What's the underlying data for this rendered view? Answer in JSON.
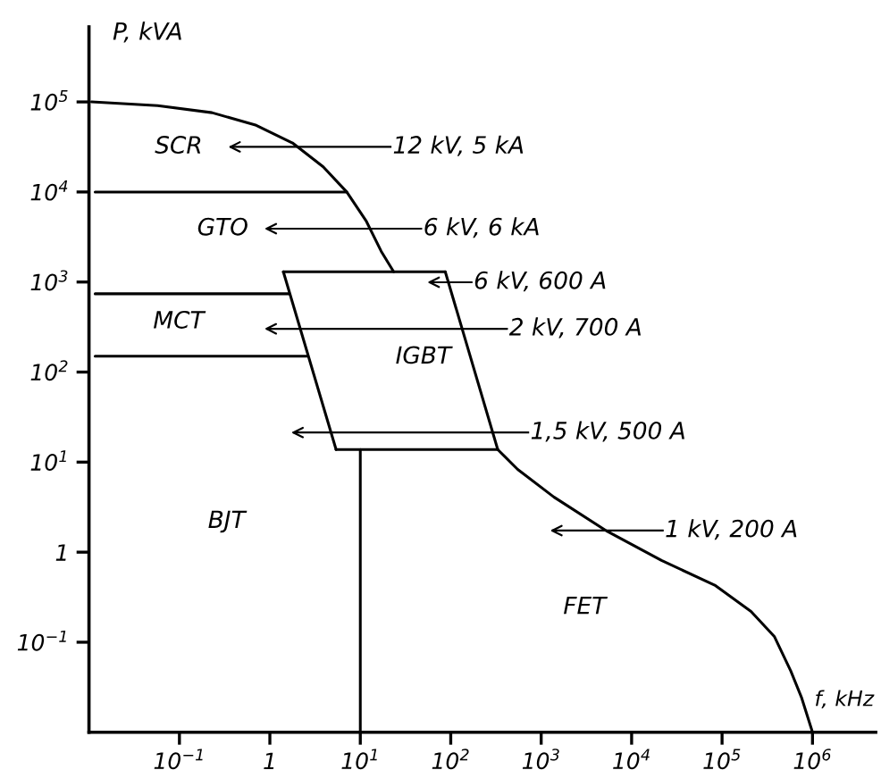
{
  "chart_data": {
    "type": "line",
    "log": "xy",
    "xlabel": "f, kHz",
    "ylabel": "P, kVA",
    "xlim": [
      0.01,
      5000000
    ],
    "ylim": [
      0.01,
      680000
    ],
    "xticks": [
      {
        "value": 0.1,
        "label": "10$^{−1}$"
      },
      1,
      {
        "value": 10,
        "label": "10$^{1}$"
      },
      {
        "value": 100,
        "label": "10$^{2}$"
      },
      {
        "value": 1000,
        "label": "10$^{3}$"
      },
      {
        "value": 10000,
        "label": "10$^{4}$"
      },
      {
        "value": 100000,
        "label": "10$^{5}$"
      },
      {
        "value": 1000000,
        "label": "10$^{6}$"
      }
    ],
    "yticks": [
      {
        "value": 0.1,
        "label": "10$^{−1}$"
      },
      1,
      {
        "value": 10,
        "label": "10$^{1}$"
      },
      {
        "value": 100,
        "label": "10$^{2}$"
      },
      {
        "value": 1000,
        "label": "10$^{3}$"
      },
      {
        "value": 10000,
        "label": "10$^{4}$"
      },
      {
        "value": 100000,
        "label": "10$^{5}$"
      }
    ],
    "series": [
      {
        "color": "#000000",
        "x": [
          0.0107,
          0.0575,
          0.229,
          0.708,
          1.78,
          3.89,
          7.08,
          11.7,
          17.0,
          23.4
        ],
        "values": [
          100000,
          91000,
          76000,
          55000,
          35000,
          19000,
          10000,
          4700,
          2200,
          1300
        ]
      },
      {
        "color": "#000000",
        "x": [
          331,
          550,
          1380,
          5400,
          21400,
          83000,
          209000,
          380000,
          575000,
          760000,
          1000000
        ],
        "values": [
          13.8,
          8.3,
          4.1,
          1.7,
          0.81,
          0.43,
          0.22,
          0.115,
          0.048,
          0.024,
          0.01
        ]
      },
      {
        "color": "#000000",
        "x": [
          1.41,
          87
        ],
        "values": [
          1300,
          1300
        ]
      },
      {
        "color": "#000000",
        "x": [
          87,
          331
        ],
        "values": [
          1300,
          13.8
        ]
      },
      {
        "color": "#000000",
        "x": [
          5.4,
          331
        ],
        "values": [
          13.8,
          13.8
        ]
      },
      {
        "color": "#000000",
        "x": [
          1.41,
          5.4
        ],
        "values": [
          1300,
          13.8
        ]
      },
      {
        "color": "#000000",
        "x": [
          10,
          10
        ],
        "values": [
          13.8,
          0.01
        ]
      },
      {
        "color": "#000000",
        "x": [
          0.0117,
          1.63
        ],
        "values": [
          740,
          740
        ]
      },
      {
        "color": "#000000",
        "x": [
          0.0117,
          2.57
        ],
        "values": [
          150,
          150
        ]
      },
      {
        "color": "#000000",
        "x": [
          0.0117,
          7.08
        ],
        "values": [
          10000,
          10000
        ]
      }
    ],
    "annotations": [
      "SCR",
      "GTO",
      "MCT",
      "IGBT",
      "BJT",
      "FET",
      "12 kV, 5 kA",
      "6 kV, 6 kA",
      "6 kV, 600 A",
      "2 kV, 700 A",
      "1,5 kV, 500 A",
      "1 kV, 200 A"
    ]
  }
}
